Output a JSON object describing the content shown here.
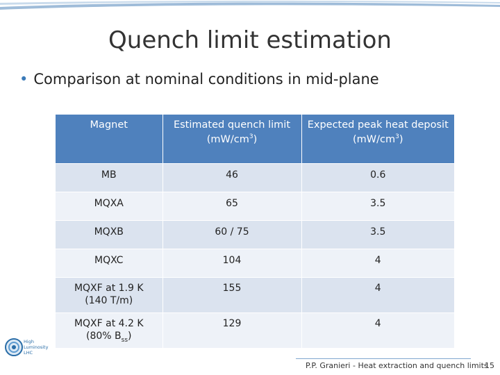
{
  "title": "Quench limit estimation",
  "bullet": "Comparison at nominal conditions in mid-plane",
  "table": {
    "headers": {
      "magnet": "Magnet",
      "estimated": "Estimated quench limit",
      "estimated_unit_pre": "(mW/cm",
      "estimated_unit_sup": "3",
      "estimated_unit_post": ")",
      "expected": "Expected peak heat deposit",
      "expected_unit_pre": "(mW/cm",
      "expected_unit_sup": "3",
      "expected_unit_post": ")"
    },
    "rows": [
      {
        "magnet": "MB",
        "estimated": "46",
        "expected": "0.6"
      },
      {
        "magnet": "MQXA",
        "estimated": "65",
        "expected": "3.5"
      },
      {
        "magnet": "MQXB",
        "estimated": "60 / 75",
        "expected": "3.5"
      },
      {
        "magnet": "MQXC",
        "estimated": "104",
        "expected": "4"
      },
      {
        "magnet_line1": "MQXF at 1.9 K",
        "magnet_line2": "(140 T/m)",
        "estimated": "155",
        "expected": "4"
      },
      {
        "magnet_line1": "MQXF at 4.2 K",
        "magnet_line2_pre": "(80% B",
        "magnet_line2_sub": "ss",
        "magnet_line2_post": ")",
        "estimated": "129",
        "expected": "4"
      }
    ]
  },
  "logo": {
    "line1": "High",
    "line2": "Luminosity",
    "line3": "LHC"
  },
  "footer": "P.P. Granieri - Heat extraction and quench limits",
  "page_number": "15",
  "colors": {
    "header_bg": "#4f81bd",
    "row_odd": "#dbe3ef",
    "row_even": "#eef2f8",
    "accent": "#3a7ab8"
  }
}
